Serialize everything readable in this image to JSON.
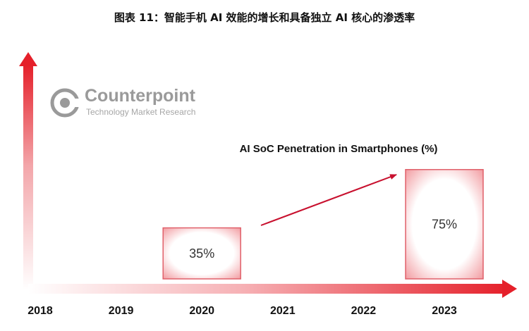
{
  "caption": "图表 11：智能手机 AI 效能的增长和具备独立 AI 核心的渗透率",
  "logo": {
    "name": "Counterpoint",
    "tagline": "Technology Market Research"
  },
  "chart_data": {
    "type": "bar",
    "title": "AI SoC Penetration in Smartphones (%)",
    "categories": [
      "2018",
      "2019",
      "2020",
      "2021",
      "2022",
      "2023"
    ],
    "series": [
      {
        "values": [
          null,
          null,
          35,
          null,
          null,
          75
        ]
      }
    ],
    "data_labels": [
      "",
      "",
      "35%",
      "",
      "",
      "75%"
    ],
    "unit": "%",
    "colors": {
      "axis": "#e5202a",
      "bar_border": "#e0606a",
      "trend_arrow": "#c8102e"
    },
    "grid": false,
    "legend": "none"
  }
}
